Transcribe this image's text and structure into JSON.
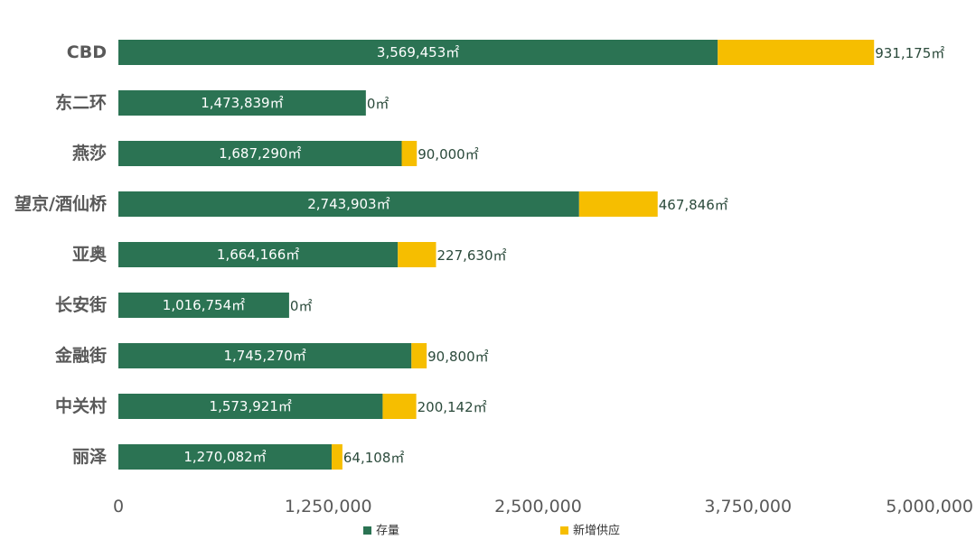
{
  "chart_data": {
    "type": "bar",
    "orientation": "horizontal",
    "stacked": true,
    "categories": [
      "CBD",
      "东二环",
      "燕莎",
      "望京/酒仙桥",
      "亚奥",
      "长安街",
      "金融街",
      "中关村",
      "丽泽"
    ],
    "series": [
      {
        "name": "存量",
        "color": "#2b7353",
        "values": [
          3569453,
          1473839,
          1687290,
          2743903,
          1664166,
          1016754,
          1745270,
          1573921,
          1270082
        ],
        "labels": [
          "3,569,453㎡",
          "1,473,839㎡",
          "1,687,290㎡",
          "2,743,903㎡",
          "1,664,166㎡",
          "1,016,754㎡",
          "1,745,270㎡",
          "1,573,921㎡",
          "1,270,082㎡"
        ]
      },
      {
        "name": "新增供应",
        "color": "#f6be00",
        "values": [
          931175,
          0,
          90000,
          467846,
          227630,
          0,
          90800,
          200142,
          64108
        ],
        "labels": [
          "931,175㎡",
          "0㎡",
          "90,000㎡",
          "467,846㎡",
          "227,630㎡",
          "0㎡",
          "90,800㎡",
          "200,142㎡",
          "64,108㎡"
        ]
      }
    ],
    "xlim": [
      0,
      5000000
    ],
    "xticks": [
      0,
      1250000,
      2500000,
      3750000,
      5000000
    ],
    "xtick_labels": [
      "0",
      "1,250,000",
      "2,500,000",
      "3,750,000",
      "5,000,000"
    ],
    "xlabel": "",
    "ylabel": "",
    "title": "",
    "grid": false,
    "legend_position": "bottom"
  }
}
